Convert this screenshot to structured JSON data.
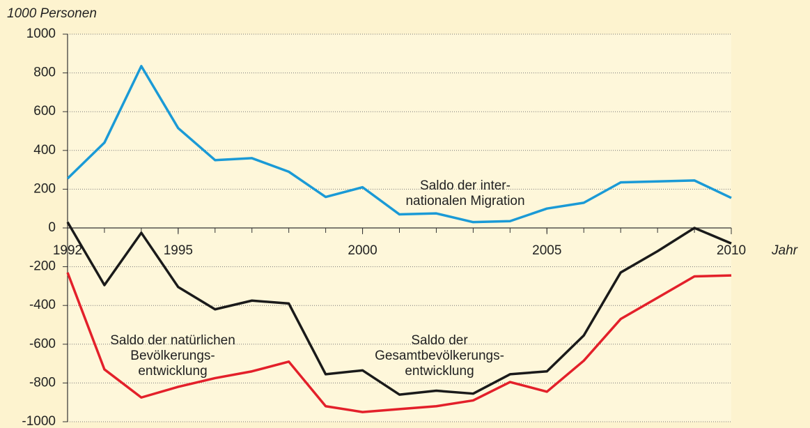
{
  "chart_data": {
    "type": "line",
    "y_label": "1000 Personen",
    "x_label": "Jahr",
    "x": [
      1992,
      1993,
      1994,
      1995,
      1996,
      1997,
      1998,
      1999,
      2000,
      2001,
      2002,
      2003,
      2004,
      2005,
      2006,
      2007,
      2008,
      2009,
      2010
    ],
    "xlim": [
      1992,
      2010
    ],
    "xticks": [
      1992,
      1995,
      2000,
      2005,
      2010
    ],
    "ylim": [
      -1000,
      1000
    ],
    "yticks": [
      -1000,
      -800,
      -600,
      -400,
      -200,
      0,
      200,
      400,
      600,
      800,
      1000
    ],
    "grid": true,
    "series": [
      {
        "label": [
          "Saldo der inter-",
          "nationalen Migration"
        ],
        "color": "#1a9ad6",
        "values": [
          255,
          440,
          835,
          515,
          350,
          360,
          290,
          160,
          210,
          70,
          75,
          30,
          35,
          100,
          130,
          235,
          240,
          245,
          155
        ]
      },
      {
        "label": [
          "Saldo der",
          "Gesamtbevölkerungs-",
          "entwicklung"
        ],
        "color": "#1a1a1a",
        "values": [
          30,
          -295,
          -25,
          -305,
          -420,
          -375,
          -390,
          -755,
          -735,
          -860,
          -840,
          -855,
          -755,
          -740,
          -555,
          -230,
          -120,
          0,
          -80
        ]
      },
      {
        "label": [
          "Saldo der natürlichen",
          "Bevölkerungs-",
          "entwicklung"
        ],
        "color": "#e3202a",
        "values": [
          -230,
          -730,
          -875,
          -820,
          -775,
          -740,
          -690,
          -920,
          -950,
          -935,
          -920,
          -890,
          -795,
          -845,
          -685,
          -470,
          -360,
          -250,
          -245
        ]
      }
    ]
  }
}
